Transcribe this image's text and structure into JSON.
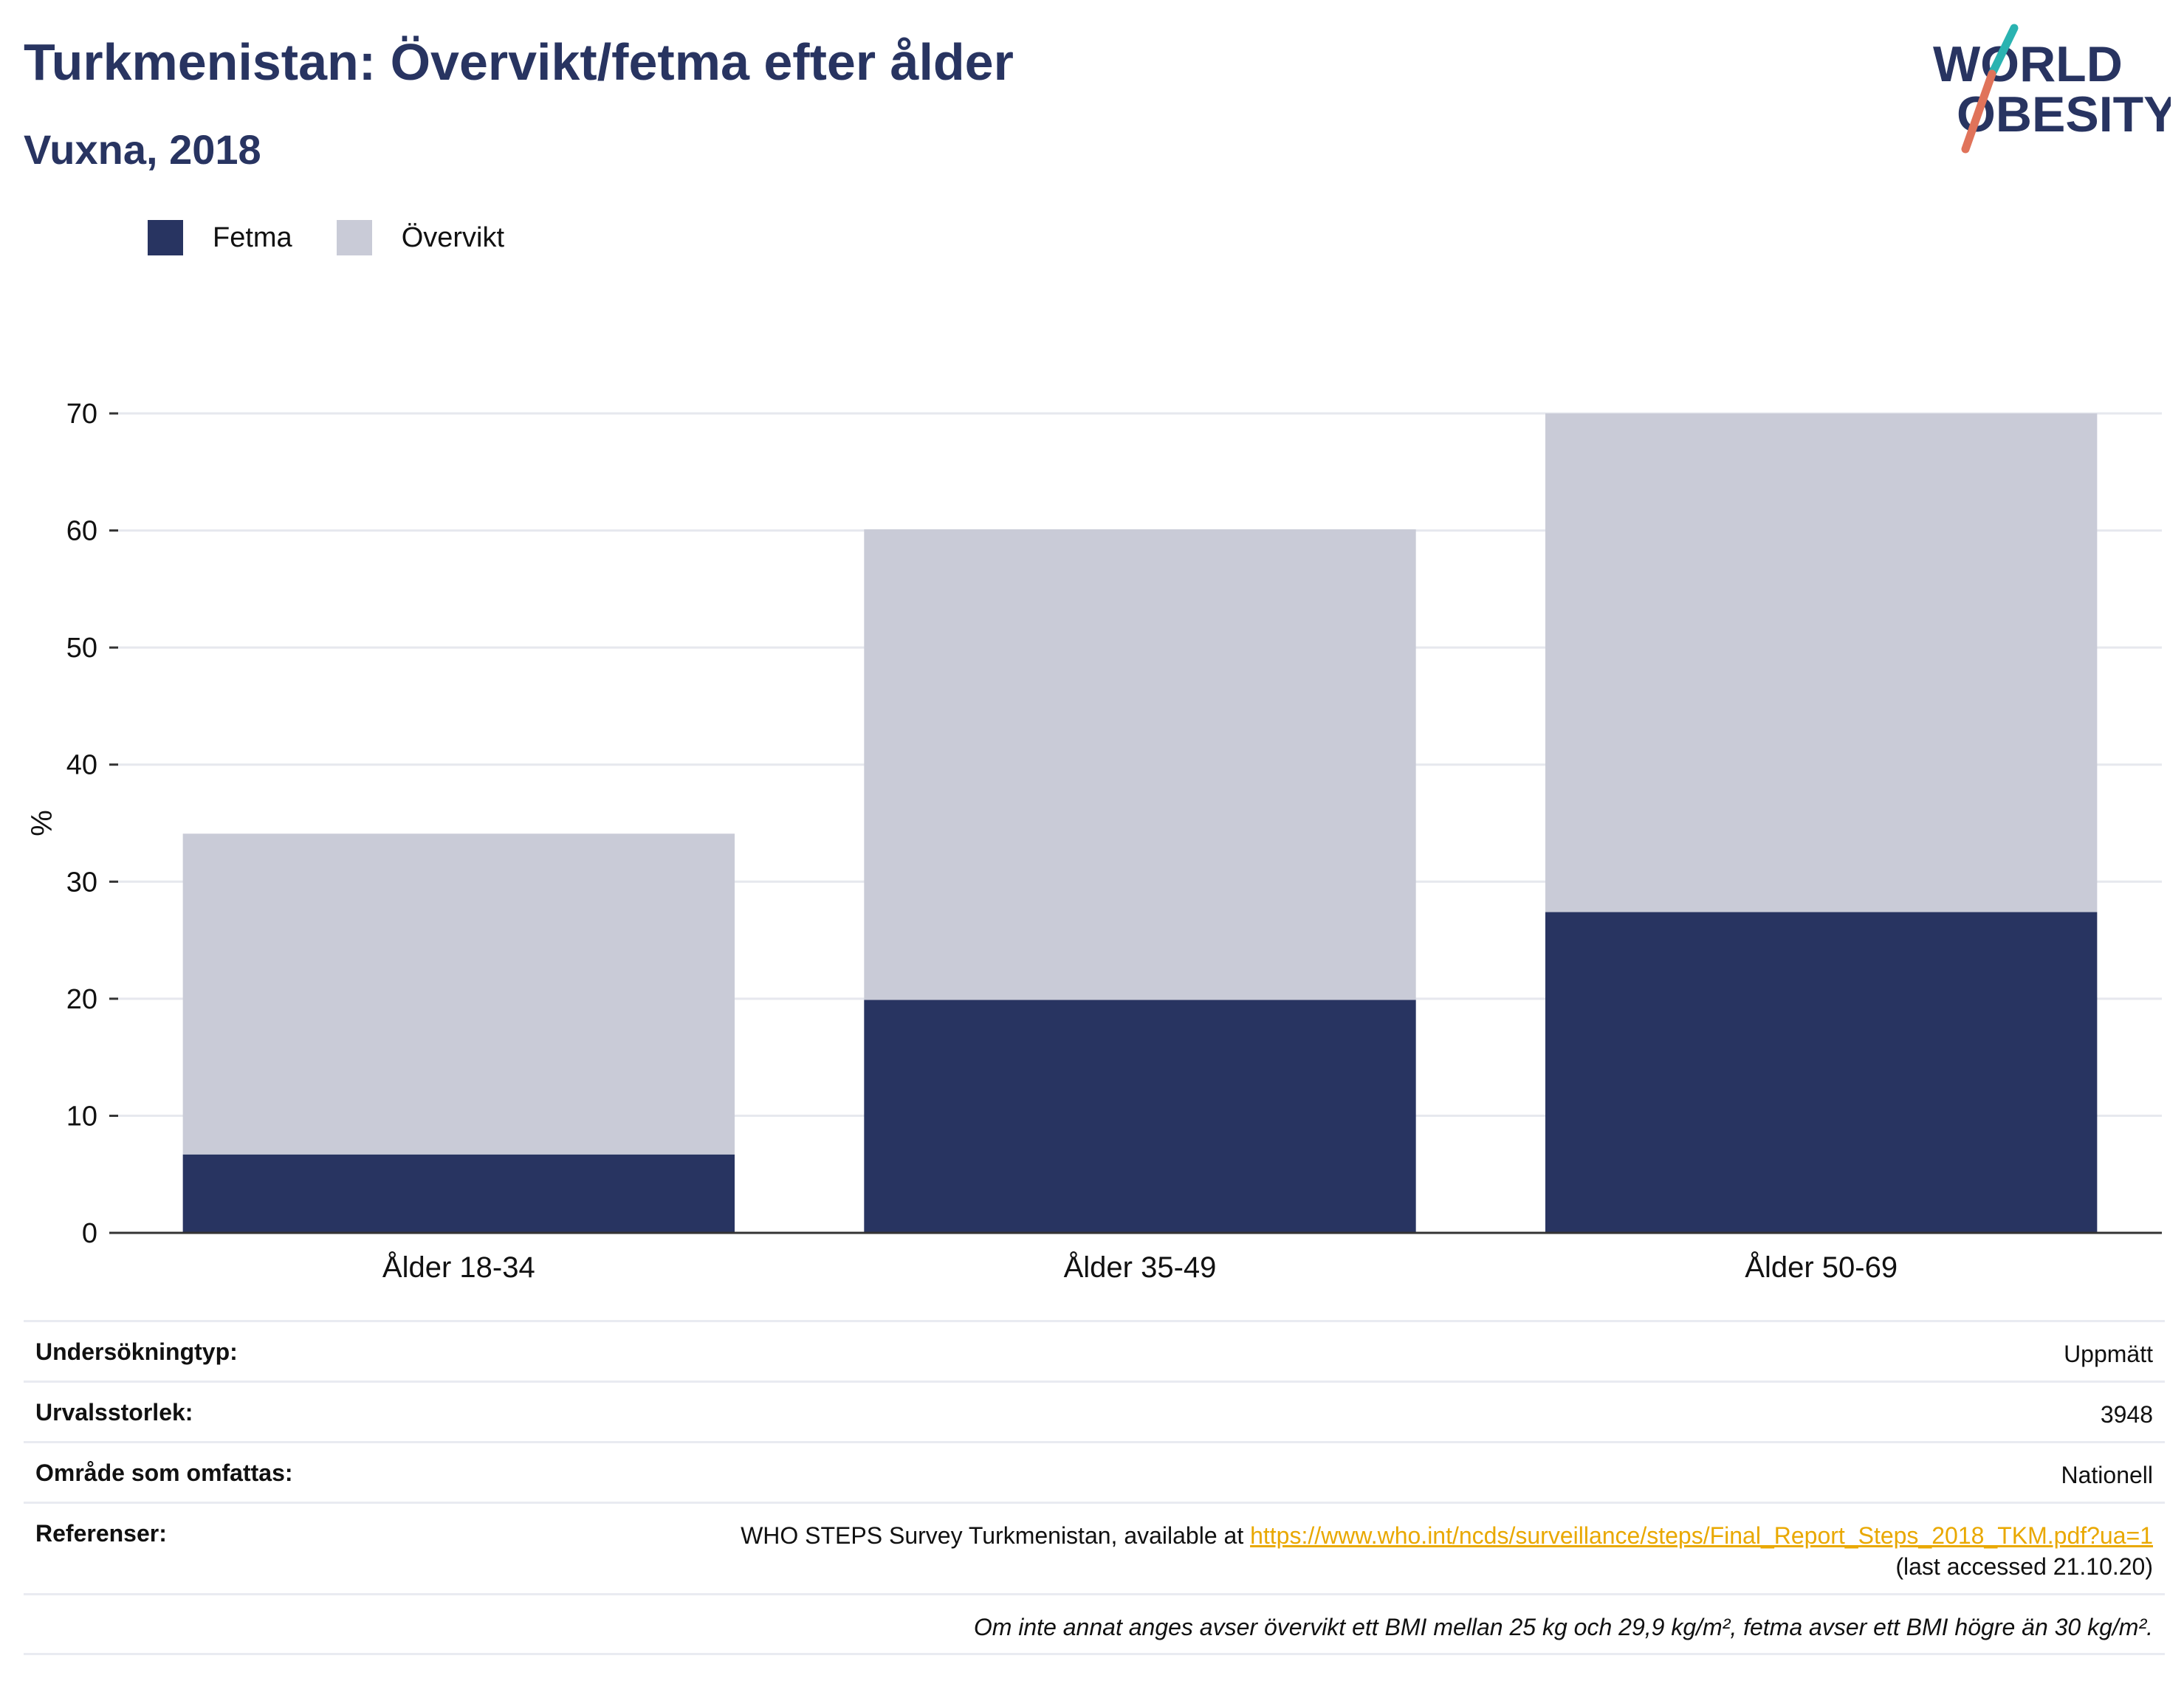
{
  "header": {
    "title": "Turkmenistan: Övervikt/fetma efter ålder",
    "subtitle": "Vuxna, 2018"
  },
  "logo": {
    "line1": "WORLD",
    "line2": "OBESITY",
    "text_color": "#283461",
    "slash_top_color": "#2ab3b1",
    "slash_bottom_color": "#e0735a"
  },
  "legend": {
    "items": [
      {
        "label": "Fetma",
        "color": "#283461"
      },
      {
        "label": "Övervikt",
        "color": "#c9cbd7"
      }
    ]
  },
  "chart_data": {
    "type": "bar",
    "stacked": true,
    "categories": [
      "Ålder 18-34",
      "Ålder 35-49",
      "Ålder 50-69"
    ],
    "series": [
      {
        "name": "Fetma",
        "color": "#283461",
        "values": [
          6.7,
          19.9,
          27.4
        ]
      },
      {
        "name": "Övervikt",
        "color": "#c9cbd7",
        "values": [
          27.4,
          40.2,
          42.6
        ]
      }
    ],
    "ylabel": "%",
    "ylim": [
      0,
      70
    ],
    "yticks": [
      0,
      10,
      20,
      30,
      40,
      50,
      60,
      70
    ],
    "grid": true,
    "legend_position": "top-left"
  },
  "info": {
    "rows": [
      {
        "label": "Undersökningtyp:",
        "value": "Uppmätt"
      },
      {
        "label": "Urvalsstorlek:",
        "value": "3948"
      },
      {
        "label": "Område som omfattas:",
        "value": "Nationell"
      }
    ],
    "references": {
      "label": "Referenser:",
      "text": "WHO STEPS Survey Turkmenistan, available at ",
      "link": "https://www.who.int/ncds/surveillance/steps/Final_Report_Steps_2018_TKM.pdf?ua=1",
      "accessed": "(last accessed 21.10.20)"
    },
    "note": "Om inte annat anges avser övervikt ett BMI mellan 25 kg och 29,9 kg/m², fetma avser ett BMI högre än 30 kg/m²."
  }
}
